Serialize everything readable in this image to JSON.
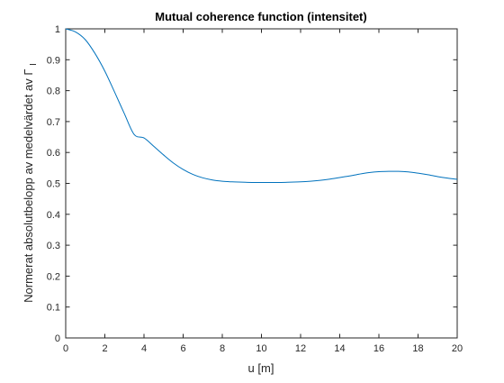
{
  "chart_data": {
    "type": "line",
    "title": "Mutual coherence function (intensitet)",
    "xlabel": "u [m]",
    "ylabel": "Normerat absolutbelopp av medelvärdet av Γ",
    "ylabel_subscript": "I",
    "xlim": [
      0,
      20
    ],
    "ylim": [
      0,
      1
    ],
    "xticks": [
      0,
      2,
      4,
      6,
      8,
      10,
      12,
      14,
      16,
      18,
      20
    ],
    "yticks": [
      0,
      0.1,
      0.2,
      0.3,
      0.4,
      0.5,
      0.6,
      0.7,
      0.8,
      0.9,
      1
    ],
    "xtick_labels": [
      "0",
      "2",
      "4",
      "6",
      "8",
      "10",
      "12",
      "14",
      "16",
      "18",
      "20"
    ],
    "ytick_labels": [
      "0",
      "0.1",
      "0.2",
      "0.3",
      "0.4",
      "0.5",
      "0.6",
      "0.7",
      "0.8",
      "0.9",
      "1"
    ],
    "grid": false,
    "line_color": "#0072bd",
    "axis_color": "#262626",
    "series": [
      {
        "x": [
          0,
          0.5,
          1,
          1.5,
          2,
          2.5,
          3,
          3.5,
          4,
          4.5,
          5,
          5.5,
          6,
          6.5,
          7,
          7.5,
          8,
          8.5,
          9,
          9.5,
          10,
          10.5,
          11,
          11.5,
          12,
          12.5,
          13,
          13.5,
          14,
          14.5,
          15,
          15.5,
          16,
          16.5,
          17,
          17.5,
          18,
          18.5,
          19,
          19.5,
          20
        ],
        "y": [
          1.0,
          0.99,
          0.965,
          0.92,
          0.863,
          0.795,
          0.725,
          0.658,
          0.647,
          0.62,
          0.592,
          0.566,
          0.545,
          0.529,
          0.518,
          0.511,
          0.507,
          0.505,
          0.504,
          0.503,
          0.503,
          0.503,
          0.503,
          0.504,
          0.505,
          0.507,
          0.51,
          0.514,
          0.519,
          0.524,
          0.53,
          0.535,
          0.538,
          0.539,
          0.539,
          0.537,
          0.533,
          0.528,
          0.522,
          0.517,
          0.513
        ]
      }
    ]
  }
}
